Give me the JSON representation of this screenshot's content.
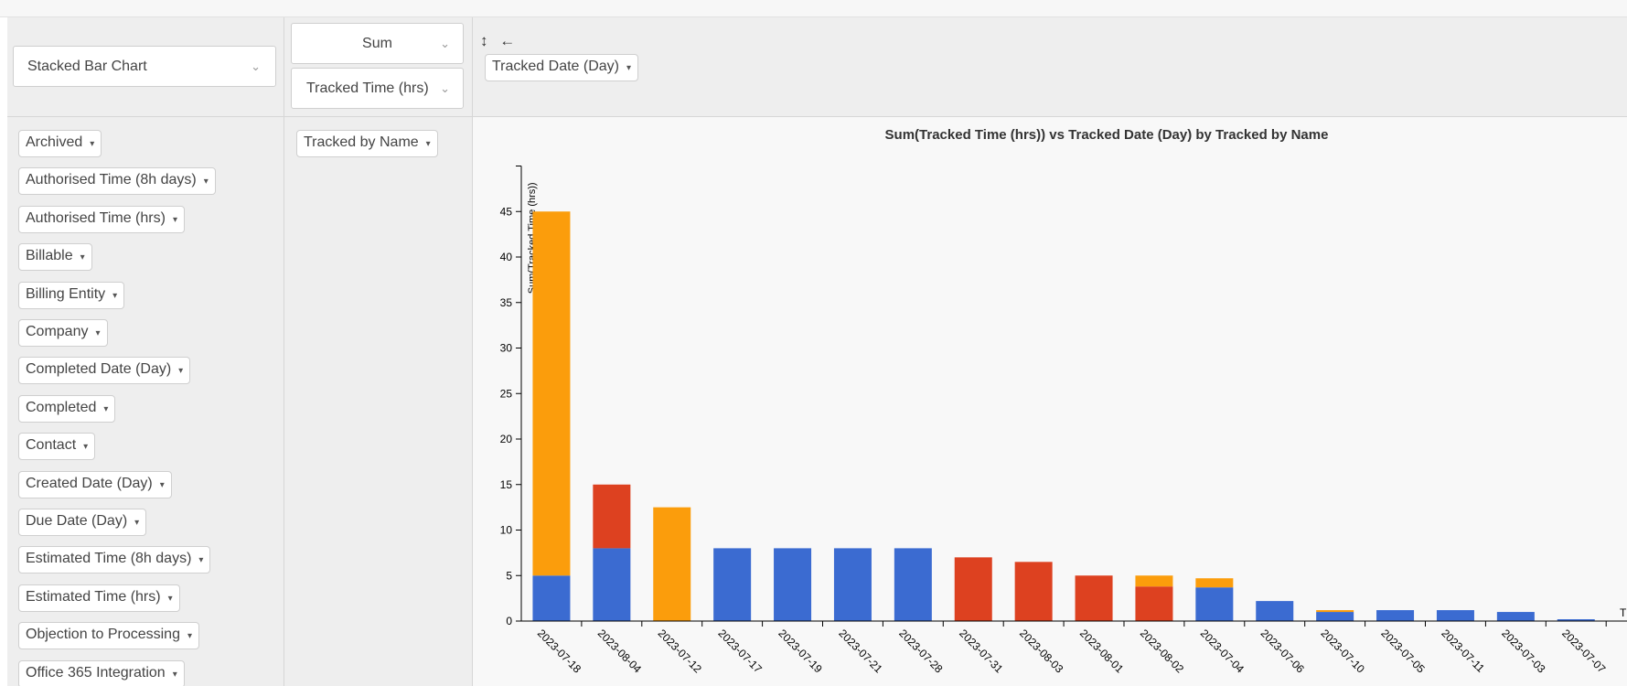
{
  "renderer": {
    "label": "Stacked Bar Chart"
  },
  "aggregator": {
    "label": "Sum"
  },
  "aggregator_attr": {
    "label": "Tracked Time (hrs)"
  },
  "sort_icons": {
    "rows": "↕",
    "cols": "←"
  },
  "col_fields": [
    "Tracked Date (Day)"
  ],
  "row_fields": [
    "Tracked by Name"
  ],
  "unused_fields": [
    "Archived",
    "Authorised Time (8h days)",
    "Authorised Time (hrs)",
    "Billable",
    "Billing Entity",
    "Company",
    "Completed Date (Day)",
    "Completed",
    "Contact",
    "Created Date (Day)",
    "Due Date (Day)",
    "Estimated Time (8h days)",
    "Estimated Time (hrs)",
    "Objection to Processing",
    "Office 365 Integration"
  ],
  "pill_arrow": "▾",
  "chart_data": {
    "type": "bar",
    "stacked": true,
    "title": "Sum(Tracked Time (hrs)) vs Tracked Date (Day) by Tracked by Name",
    "ylabel": "Sum(Tracked Time (hrs))",
    "xlabel": "",
    "ylim": [
      0,
      50
    ],
    "yticks": [
      0,
      5,
      10,
      15,
      20,
      25,
      30,
      35,
      40,
      45
    ],
    "categories": [
      "2023-07-18",
      "2023-08-04",
      "2023-07-12",
      "2023-07-17",
      "2023-07-19",
      "2023-07-21",
      "2023-07-28",
      "2023-07-31",
      "2023-08-03",
      "2023-08-01",
      "2023-08-02",
      "2023-07-04",
      "2023-07-06",
      "2023-07-10",
      "2023-07-05",
      "2023-07-11",
      "2023-07-03",
      "2023-07-07"
    ],
    "series": [
      {
        "color": "#3b6bd1",
        "values": [
          5,
          8,
          0,
          8,
          8,
          8,
          8,
          0,
          0,
          0,
          0,
          3.7,
          2.2,
          1,
          1.2,
          1.2,
          1,
          0.2
        ]
      },
      {
        "color": "#dd4120",
        "values": [
          0,
          7,
          0,
          0,
          0,
          0,
          0,
          7,
          6.5,
          5,
          3.8,
          0,
          0,
          0,
          0,
          0,
          0,
          0
        ]
      },
      {
        "color": "#fb9d0c",
        "values": [
          40,
          0,
          12.5,
          0,
          0,
          0,
          0,
          0,
          0,
          0,
          1.2,
          1,
          0,
          0.2,
          0,
          0,
          0,
          0
        ]
      }
    ],
    "edge_label": "T"
  }
}
